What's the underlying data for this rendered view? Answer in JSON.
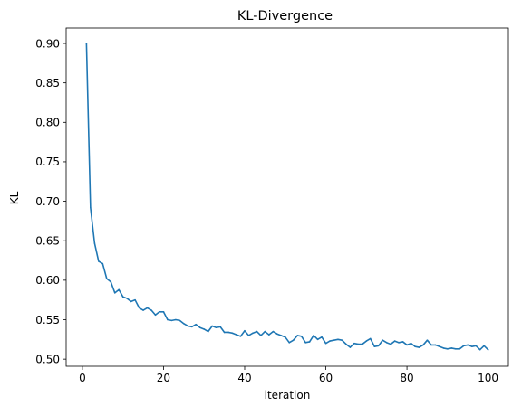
{
  "chart_data": {
    "type": "line",
    "title": "KL-Divergence",
    "xlabel": "iteration",
    "ylabel": "KL",
    "xlim": [
      -4,
      105
    ],
    "ylim": [
      0.491,
      0.9195
    ],
    "xticks": [
      0,
      20,
      40,
      60,
      80,
      100
    ],
    "xtick_labels": [
      "0",
      "20",
      "40",
      "60",
      "80",
      "100"
    ],
    "yticks": [
      0.5,
      0.55,
      0.6,
      0.65,
      0.7,
      0.75,
      0.8,
      0.85,
      0.9
    ],
    "ytick_labels": [
      "0.50",
      "0.55",
      "0.60",
      "0.65",
      "0.70",
      "0.75",
      "0.80",
      "0.85",
      "0.90"
    ],
    "grid": false,
    "legend": false,
    "series": [
      {
        "color": "#1f77b4",
        "x": [
          1,
          2,
          3,
          4,
          5,
          6,
          7,
          8,
          9,
          10,
          11,
          12,
          13,
          14,
          15,
          16,
          17,
          18,
          19,
          20,
          21,
          22,
          23,
          24,
          25,
          26,
          27,
          28,
          29,
          30,
          31,
          32,
          33,
          34,
          35,
          36,
          37,
          38,
          39,
          40,
          41,
          42,
          43,
          44,
          45,
          46,
          47,
          48,
          49,
          50,
          51,
          52,
          53,
          54,
          55,
          56,
          57,
          58,
          59,
          60,
          61,
          62,
          63,
          64,
          65,
          66,
          67,
          68,
          69,
          70,
          71,
          72,
          73,
          74,
          75,
          76,
          77,
          78,
          79,
          80,
          81,
          82,
          83,
          84,
          85,
          86,
          87,
          88,
          89,
          90,
          91,
          92,
          93,
          94,
          95,
          96,
          97,
          98,
          99,
          100
        ],
        "y": [
          0.9,
          0.692,
          0.647,
          0.624,
          0.621,
          0.602,
          0.598,
          0.584,
          0.588,
          0.579,
          0.577,
          0.573,
          0.575,
          0.565,
          0.562,
          0.565,
          0.562,
          0.556,
          0.56,
          0.56,
          0.55,
          0.549,
          0.55,
          0.549,
          0.545,
          0.542,
          0.541,
          0.544,
          0.54,
          0.538,
          0.535,
          0.542,
          0.54,
          0.541,
          0.534,
          0.534,
          0.533,
          0.531,
          0.529,
          0.536,
          0.53,
          0.533,
          0.535,
          0.53,
          0.535,
          0.531,
          0.535,
          0.532,
          0.53,
          0.528,
          0.521,
          0.524,
          0.53,
          0.529,
          0.521,
          0.522,
          0.53,
          0.525,
          0.528,
          0.52,
          0.523,
          0.524,
          0.525,
          0.524,
          0.519,
          0.515,
          0.52,
          0.519,
          0.519,
          0.523,
          0.526,
          0.516,
          0.517,
          0.524,
          0.521,
          0.519,
          0.523,
          0.521,
          0.522,
          0.518,
          0.52,
          0.516,
          0.515,
          0.518,
          0.524,
          0.518,
          0.518,
          0.516,
          0.514,
          0.513,
          0.514,
          0.513,
          0.513,
          0.517,
          0.518,
          0.516,
          0.517,
          0.512,
          0.517,
          0.512
        ]
      }
    ]
  }
}
